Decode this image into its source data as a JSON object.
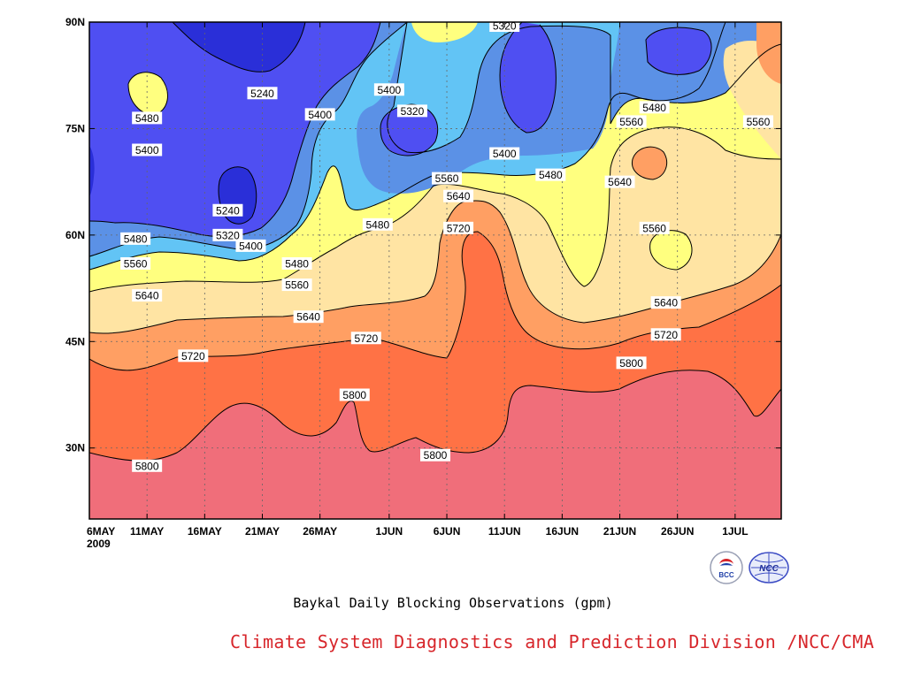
{
  "colors": {
    "bands": [
      "#2a2fd8",
      "#4f4ff2",
      "#5b91e6",
      "#62c4f5",
      "#ffff7f",
      "#ffe4a3",
      "#ff9f63",
      "#ff7245",
      "#f06e7a"
    ],
    "frame": "#000000",
    "grid": "#666666",
    "credit": "#d7262b"
  },
  "chart_data": {
    "type": "heatmap",
    "title": "Baykal Daily Blocking Observations (gpm)",
    "xlabel": "",
    "ylabel": "",
    "x_range": [
      "2009-05-06",
      "2009-07-05"
    ],
    "y_range": [
      20,
      90
    ],
    "x_ticks": [
      "6MAY",
      "11MAY",
      "16MAY",
      "21MAY",
      "26MAY",
      "1JUN",
      "6JUN",
      "11JUN",
      "16JUN",
      "21JUN",
      "26JUN",
      "1JUL"
    ],
    "x_year": "2009",
    "y_ticks": [
      "30N",
      "45N",
      "60N",
      "75N",
      "90N"
    ],
    "y_tick_values": [
      30,
      45,
      60,
      75,
      90
    ],
    "grid": true,
    "contour_levels": [
      5240,
      5320,
      5400,
      5480,
      5560,
      5640,
      5720,
      5800
    ],
    "contour_labels": [
      {
        "value": "5320",
        "date": "2009-06-11",
        "lat": 89.5
      },
      {
        "value": "5240",
        "date": "2009-05-21",
        "lat": 80.0
      },
      {
        "value": "5400",
        "date": "2009-06-01",
        "lat": 80.5
      },
      {
        "value": "5480",
        "date": "2009-06-24",
        "lat": 78.0
      },
      {
        "value": "5480",
        "date": "2009-05-11",
        "lat": 76.5
      },
      {
        "value": "5400",
        "date": "2009-05-26",
        "lat": 77.0
      },
      {
        "value": "5320",
        "date": "2009-06-03",
        "lat": 77.5
      },
      {
        "value": "5560",
        "date": "2009-06-22",
        "lat": 76.0
      },
      {
        "value": "5560",
        "date": "2009-07-03",
        "lat": 76.0
      },
      {
        "value": "5400",
        "date": "2009-05-11",
        "lat": 72.0
      },
      {
        "value": "5400",
        "date": "2009-06-11",
        "lat": 71.5
      },
      {
        "value": "5480",
        "date": "2009-06-15",
        "lat": 68.5
      },
      {
        "value": "5560",
        "date": "2009-06-06",
        "lat": 68.0
      },
      {
        "value": "5640",
        "date": "2009-06-21",
        "lat": 67.5
      },
      {
        "value": "5640",
        "date": "2009-06-07",
        "lat": 65.5
      },
      {
        "value": "5240",
        "date": "2009-05-18",
        "lat": 63.5
      },
      {
        "value": "5480",
        "date": "2009-05-31",
        "lat": 61.5
      },
      {
        "value": "5720",
        "date": "2009-06-07",
        "lat": 61.0
      },
      {
        "value": "5560",
        "date": "2009-06-24",
        "lat": 61.0
      },
      {
        "value": "5320",
        "date": "2009-05-18",
        "lat": 60.0
      },
      {
        "value": "5480",
        "date": "2009-05-10",
        "lat": 59.5
      },
      {
        "value": "5400",
        "date": "2009-05-20",
        "lat": 58.5
      },
      {
        "value": "5560",
        "date": "2009-05-10",
        "lat": 56.0
      },
      {
        "value": "5480",
        "date": "2009-05-24",
        "lat": 56.0
      },
      {
        "value": "5560",
        "date": "2009-05-24",
        "lat": 53.0
      },
      {
        "value": "5640",
        "date": "2009-05-11",
        "lat": 51.5
      },
      {
        "value": "5640",
        "date": "2009-06-25",
        "lat": 50.5
      },
      {
        "value": "5640",
        "date": "2009-05-25",
        "lat": 48.5
      },
      {
        "value": "5720",
        "date": "2009-05-30",
        "lat": 45.5
      },
      {
        "value": "5720",
        "date": "2009-06-25",
        "lat": 46.0
      },
      {
        "value": "5720",
        "date": "2009-05-15",
        "lat": 43.0
      },
      {
        "value": "5800",
        "date": "2009-06-22",
        "lat": 42.0
      },
      {
        "value": "5800",
        "date": "2009-05-29",
        "lat": 37.5
      },
      {
        "value": "5800",
        "date": "2009-05-11",
        "lat": 27.5
      },
      {
        "value": "5800",
        "date": "2009-06-05",
        "lat": 29.0
      }
    ]
  },
  "title": "Baykal Daily Blocking Observations (gpm)",
  "credit": "Climate System Diagnostics and Prediction Division /NCC/CMA",
  "logos": {
    "bcc": {
      "text": "BCC",
      "icon": "bcc-logo-icon"
    },
    "ncc": {
      "text": "NCC",
      "icon": "ncc-logo-icon"
    }
  }
}
